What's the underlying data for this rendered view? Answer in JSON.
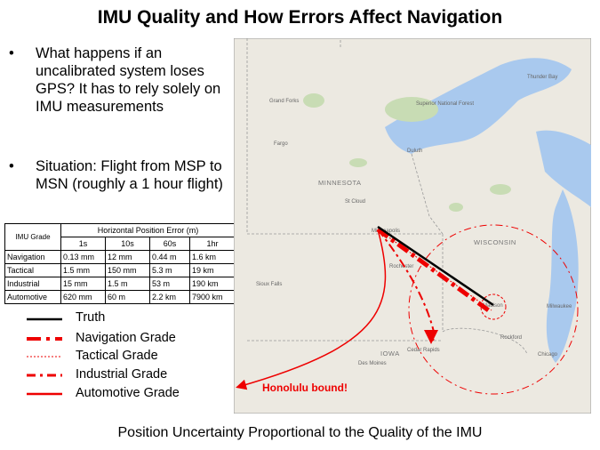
{
  "title": "IMU Quality and How Errors Affect Navigation",
  "bullets": [
    "What happens if an uncalibrated system loses GPS? It has to rely solely on IMU measurements",
    "Situation: Flight from MSP to MSN (roughly a 1 hour flight)"
  ],
  "table": {
    "group_header": "Horizontal Position Error (m)",
    "columns": [
      "IMU Grade",
      "1s",
      "10s",
      "60s",
      "1hr"
    ],
    "rows": [
      [
        "Navigation",
        "0.13 mm",
        "12 mm",
        "0.44 m",
        "1.6 km"
      ],
      [
        "Tactical",
        "1.5 mm",
        "150 mm",
        "5.3 m",
        "19 km"
      ],
      [
        "Industrial",
        "15 mm",
        "1.5 m",
        "53 m",
        "190 km"
      ],
      [
        "Automotive",
        "620 mm",
        "60 m",
        "2.2 km",
        "7900 km"
      ]
    ]
  },
  "legend": [
    "Truth",
    "Navigation Grade",
    "Tactical Grade",
    "Industrial Grade",
    "Automotive Grade"
  ],
  "map": {
    "annotation": "Honolulu bound!",
    "states": [
      "MINNESOTA",
      "WISCONSIN",
      "IOWA"
    ],
    "places": [
      "Grand Forks",
      "Fargo",
      "Duluth",
      "St Cloud",
      "Minneapolis",
      "Rochester",
      "Sioux Falls",
      "Madison",
      "Milwaukee",
      "Rockford",
      "Chicago",
      "Des Moines",
      "Cedar Rapids",
      "Thunder Bay",
      "Superior National Forest"
    ]
  },
  "footer": "Position Uncertainty Proportional to the Quality of the IMU"
}
